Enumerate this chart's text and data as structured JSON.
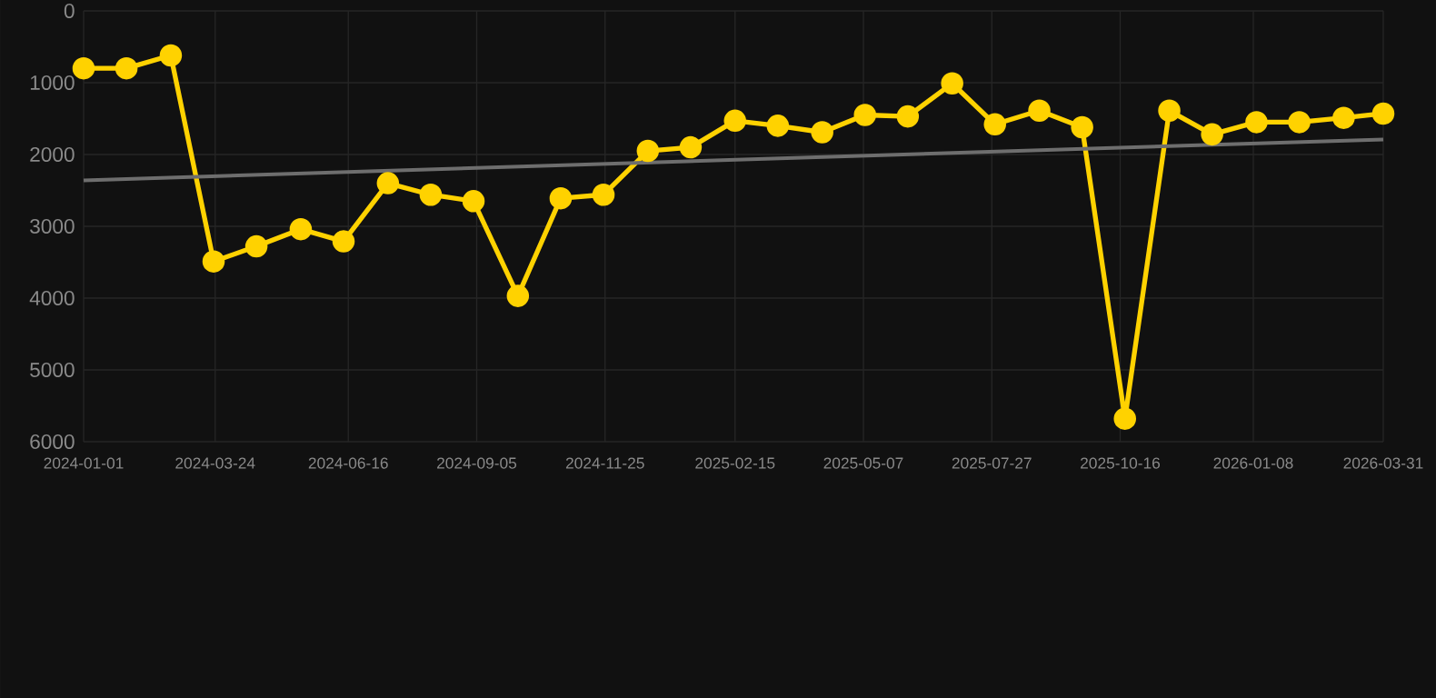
{
  "chart_data": {
    "type": "line",
    "x": [
      "2024-01-01",
      "2024-01-28",
      "2024-02-25",
      "2024-03-23",
      "2024-04-19",
      "2024-05-17",
      "2024-06-13",
      "2024-07-11",
      "2024-08-07",
      "2024-09-03",
      "2024-10-01",
      "2024-10-28",
      "2024-11-24",
      "2024-12-22",
      "2025-01-18",
      "2025-02-15",
      "2025-03-14",
      "2025-04-11",
      "2025-05-08",
      "2025-06-04",
      "2025-07-02",
      "2025-07-29",
      "2025-08-26",
      "2025-09-22",
      "2025-10-19",
      "2025-11-16",
      "2025-12-13",
      "2026-01-10",
      "2026-02-06",
      "2026-03-06",
      "2026-03-31"
    ],
    "series": [
      {
        "color": "#ffd200",
        "marker": "circle",
        "values": [
          800,
          800,
          620,
          3490,
          3280,
          3040,
          3210,
          2400,
          2560,
          2650,
          3970,
          2610,
          2560,
          1950,
          1900,
          1530,
          1600,
          1690,
          1450,
          1470,
          1010,
          1580,
          1390,
          1620,
          5680,
          1390,
          1720,
          1550,
          1550,
          1490,
          1430
        ]
      },
      {
        "type": "line",
        "color": "#6e6e6e",
        "marker": "none",
        "x": [
          "2024-01-01",
          "2026-03-31"
        ],
        "values": [
          2360,
          1790
        ]
      }
    ],
    "xlim": [
      "2024-01-01",
      "2026-03-31"
    ],
    "xticks": [
      "2024-01-01",
      "2024-03-24",
      "2024-06-16",
      "2024-09-05",
      "2024-11-25",
      "2025-02-15",
      "2025-05-07",
      "2025-07-27",
      "2025-10-16",
      "2026-01-08",
      "2026-03-31"
    ],
    "ylim": [
      6000,
      0
    ],
    "yticks": [
      0,
      1000,
      2000,
      3000,
      4000,
      5000,
      6000
    ],
    "grid": true,
    "line_style": "solid"
  }
}
